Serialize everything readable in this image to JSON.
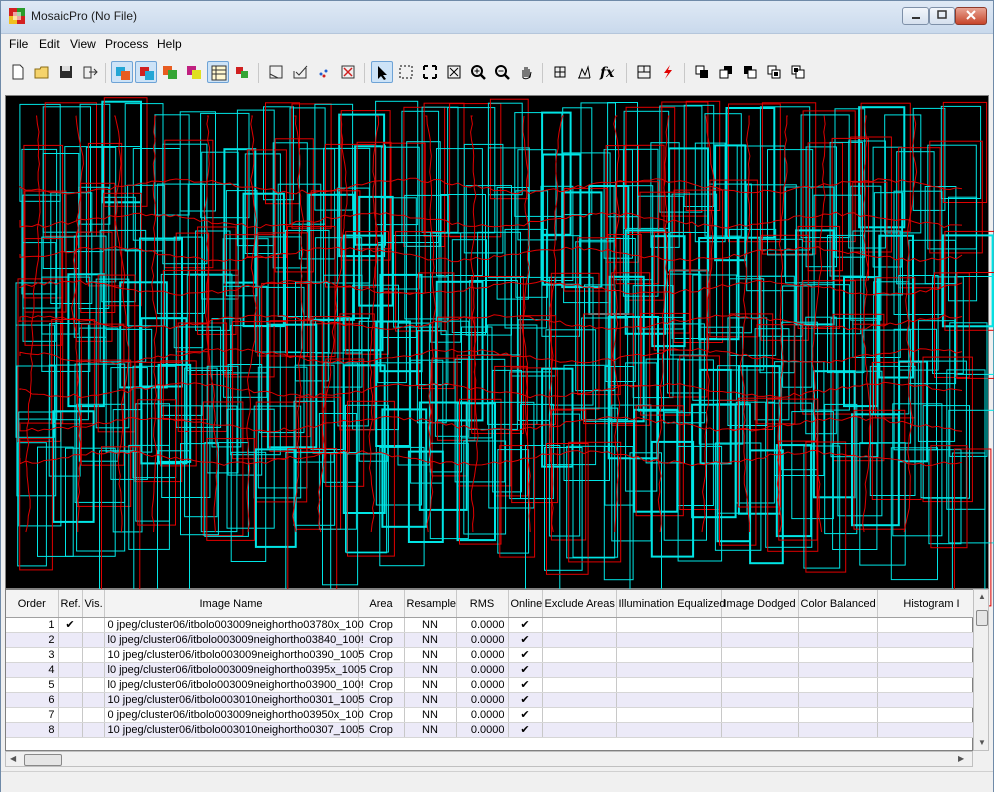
{
  "window": {
    "title": "MosaicPro (No File)"
  },
  "menu": [
    "File",
    "Edit",
    "View",
    "Process",
    "Help"
  ],
  "toolbar": {
    "buttons": [
      "new-icon",
      "open-icon",
      "save-icon",
      "export-icon",
      "image-area-icon",
      "seamline-icon",
      "color-icon",
      "dodge-icon",
      "table-icon",
      "display-icon",
      "polygon-icon",
      "check-icon",
      "points-icon",
      "x-box-icon",
      "pointer-icon",
      "select-rect-icon",
      "fit-icon",
      "zoom-extent-icon",
      "zoom-in-icon",
      "zoom-out-icon",
      "pan-icon",
      "grid-icon",
      "histogram-icon",
      "function-icon",
      "output-icon",
      "run-icon",
      "order-1-icon",
      "order-2-icon",
      "order-3-icon",
      "order-4-icon",
      "order-5-icon"
    ]
  },
  "colors": {
    "footprint": "#00e5e5",
    "seamline": "#e00000",
    "canvas": "#000000"
  },
  "table": {
    "columns": [
      "Order",
      "Ref.",
      "Vis.",
      "Image Name",
      "Area",
      "Resample",
      "RMS",
      "Online",
      "Exclude Areas",
      "Illumination Equalized",
      "Image Dodged",
      "Color Balanced",
      "Histogram I"
    ],
    "rows": [
      {
        "order": "1",
        "ref": "✔",
        "vis": "",
        "name": "0 jpeg/cluster06/itbolo003009neighortho03780x_100",
        "area": "Crop",
        "resample": "NN",
        "rms": "0.0000",
        "online": "✔"
      },
      {
        "order": "2",
        "ref": "",
        "vis": "",
        "name": "l0 jpeg/cluster06/itbolo003009neighortho03840_100!",
        "area": "Crop",
        "resample": "NN",
        "rms": "0.0000",
        "online": "✔"
      },
      {
        "order": "3",
        "ref": "",
        "vis": "",
        "name": "10 jpeg/cluster06/itbolo003009neighortho0390_1005",
        "area": "Crop",
        "resample": "NN",
        "rms": "0.0000",
        "online": "✔"
      },
      {
        "order": "4",
        "ref": "",
        "vis": "",
        "name": "l0 jpeg/cluster06/itbolo003009neighortho0395x_1005",
        "area": "Crop",
        "resample": "NN",
        "rms": "0.0000",
        "online": "✔"
      },
      {
        "order": "5",
        "ref": "",
        "vis": "",
        "name": "l0 jpeg/cluster06/itbolo003009neighortho03900_100!",
        "area": "Crop",
        "resample": "NN",
        "rms": "0.0000",
        "online": "✔"
      },
      {
        "order": "6",
        "ref": "",
        "vis": "",
        "name": "10 jpeg/cluster06/itbolo003010neighortho0301_1005",
        "area": "Crop",
        "resample": "NN",
        "rms": "0.0000",
        "online": "✔"
      },
      {
        "order": "7",
        "ref": "",
        "vis": "",
        "name": "0 jpeg/cluster06/itbolo003009neighortho03950x_100",
        "area": "Crop",
        "resample": "NN",
        "rms": "0.0000",
        "online": "✔"
      },
      {
        "order": "8",
        "ref": "",
        "vis": "",
        "name": "10 jpeg/cluster06/itbolo003010neighortho0307_1005",
        "area": "Crop",
        "resample": "NN",
        "rms": "0.0000",
        "online": "✔"
      }
    ]
  }
}
